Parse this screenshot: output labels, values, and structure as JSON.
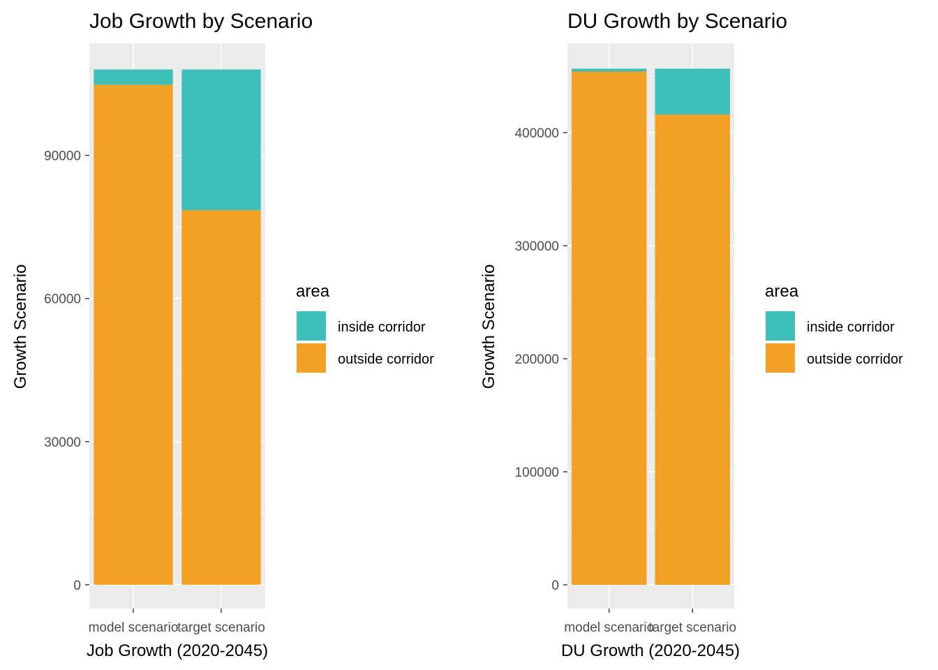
{
  "chart_data": [
    {
      "type": "bar",
      "stacked": true,
      "title": "Job Growth by Scenario",
      "xlabel": "Job Growth (2020-2045)",
      "ylabel": "Growth Scenario",
      "categories": [
        "model scenario",
        "target scenario"
      ],
      "series": [
        {
          "name": "outside corridor",
          "values": [
            104800,
            78500
          ]
        },
        {
          "name": "inside corridor",
          "values": [
            3200,
            29500
          ]
        }
      ],
      "ylim": [
        -5000,
        113500
      ],
      "yticks": [
        0,
        30000,
        60000,
        90000
      ],
      "ytick_labels": [
        "0",
        "30000",
        "60000",
        "90000"
      ],
      "grid": true,
      "legend": {
        "title": "area",
        "placement": "right",
        "entries": [
          "inside corridor",
          "outside corridor"
        ]
      }
    },
    {
      "type": "bar",
      "stacked": true,
      "title": "DU Growth by Scenario",
      "xlabel": "DU Growth (2020-2045)",
      "ylabel": "Growth Scenario",
      "categories": [
        "model scenario",
        "target scenario"
      ],
      "series": [
        {
          "name": "outside corridor",
          "values": [
            454000,
            416000
          ]
        },
        {
          "name": "inside corridor",
          "values": [
            2500,
            40500
          ]
        }
      ],
      "ylim": [
        -21000,
        479000
      ],
      "yticks": [
        0,
        100000,
        200000,
        300000,
        400000
      ],
      "ytick_labels": [
        "0",
        "100000",
        "200000",
        "300000",
        "400000"
      ],
      "grid": true,
      "legend": {
        "title": "area",
        "placement": "right",
        "entries": [
          "inside corridor",
          "outside corridor"
        ]
      }
    }
  ],
  "colors": {
    "inside corridor": "#3DBFBA",
    "outside corridor": "#F2A026",
    "panel_bg": "#EBEBEB",
    "grid_major": "#FFFFFF"
  }
}
